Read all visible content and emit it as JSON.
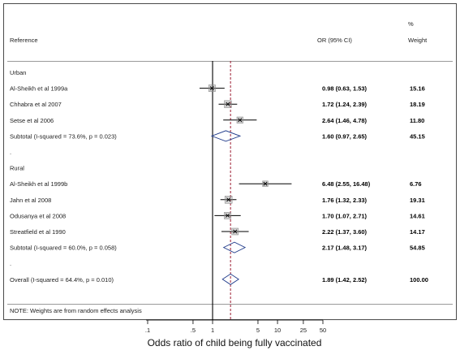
{
  "chart_data": {
    "type": "forest",
    "xlabel": "Odds ratio of child being fully vaccinated",
    "x_scale": "log",
    "xlim": [
      0.1,
      50
    ],
    "ticks": [
      {
        "value": 0.1,
        "label": ".1"
      },
      {
        "value": 0.5,
        "label": ".5"
      },
      {
        "value": 1,
        "label": "1"
      },
      {
        "value": 5,
        "label": "5"
      },
      {
        "value": 10,
        "label": "10"
      },
      {
        "value": 25,
        "label": "25"
      },
      {
        "value": 50,
        "label": "50"
      }
    ],
    "null_line": 1,
    "overall_line": 1.89,
    "columns": {
      "reference": "Reference",
      "or_ci": "OR (95% CI)",
      "weight_pct": "%",
      "weight": "Weight"
    },
    "rows": [
      {
        "type": "group",
        "label": "Urban"
      },
      {
        "type": "study",
        "label": "Al-Sheikh et al 1999a",
        "or": 0.98,
        "lo": 0.63,
        "hi": 1.53,
        "ci_text": "0.98 (0.63, 1.53)",
        "weight": "15.16"
      },
      {
        "type": "study",
        "label": "Chhabra et al 2007",
        "or": 1.72,
        "lo": 1.24,
        "hi": 2.39,
        "ci_text": "1.72 (1.24, 2.39)",
        "weight": "18.19"
      },
      {
        "type": "study",
        "label": "Setse et al 2006",
        "or": 2.64,
        "lo": 1.46,
        "hi": 4.78,
        "ci_text": "2.64 (1.46, 4.78)",
        "weight": "11.80"
      },
      {
        "type": "subtotal",
        "label": "Subtotal  (I-squared = 73.6%, p = 0.023)",
        "or": 1.6,
        "lo": 0.97,
        "hi": 2.65,
        "ci_text": "1.60 (0.97, 2.65)",
        "weight": "45.15"
      },
      {
        "type": "spacer",
        "label": "."
      },
      {
        "type": "group",
        "label": "Rural"
      },
      {
        "type": "study",
        "label": "Al-Sheikh et al 1999b",
        "or": 6.48,
        "lo": 2.55,
        "hi": 16.48,
        "ci_text": "6.48 (2.55, 16.48)",
        "weight": "6.76"
      },
      {
        "type": "study",
        "label": "Jahn et al 2008",
        "or": 1.76,
        "lo": 1.32,
        "hi": 2.33,
        "ci_text": "1.76 (1.32, 2.33)",
        "weight": "19.31"
      },
      {
        "type": "study",
        "label": "Odusanya et al 2008",
        "or": 1.7,
        "lo": 1.07,
        "hi": 2.71,
        "ci_text": "1.70 (1.07, 2.71)",
        "weight": "14.61"
      },
      {
        "type": "study",
        "label": "Streatfield et al 1990",
        "or": 2.22,
        "lo": 1.37,
        "hi": 3.6,
        "ci_text": "2.22 (1.37, 3.60)",
        "weight": "14.17"
      },
      {
        "type": "subtotal",
        "label": "Subtotal  (I-squared = 60.0%, p = 0.058)",
        "or": 2.17,
        "lo": 1.48,
        "hi": 3.17,
        "ci_text": "2.17 (1.48, 3.17)",
        "weight": "54.85"
      },
      {
        "type": "spacer",
        "label": "."
      },
      {
        "type": "overall",
        "label": "Overall  (I-squared = 64.4%, p = 0.010)",
        "or": 1.89,
        "lo": 1.42,
        "hi": 2.52,
        "ci_text": "1.89 (1.42, 2.52)",
        "weight": "100.00"
      }
    ],
    "note": "NOTE: Weights are from random effects analysis"
  },
  "colors": {
    "frame": "#4a4a4a",
    "rule": "#9a9a9a",
    "null_line": "#000000",
    "overall_line": "#9b1b30",
    "marker": "#000000",
    "box": "#8a8a8a"
  }
}
